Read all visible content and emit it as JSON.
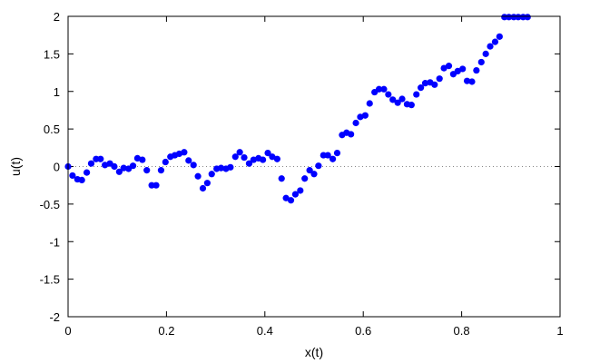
{
  "chart_data": {
    "type": "scatter",
    "title": "",
    "xlabel": "x(t)",
    "ylabel": "u(t)",
    "xlim": [
      0,
      1
    ],
    "ylim": [
      -2,
      2
    ],
    "x_ticks": [
      0,
      0.2,
      0.4,
      0.6,
      0.8,
      1
    ],
    "x_tick_labels": [
      "0",
      "0.2",
      "0.4",
      "0.6",
      "0.8",
      "1"
    ],
    "y_ticks": [
      -2,
      -1.5,
      -1,
      -0.5,
      0,
      0.5,
      1,
      1.5,
      2
    ],
    "y_tick_labels": [
      "-2",
      "-1.5",
      "-1",
      "-0.5",
      "0",
      "0.5",
      "1",
      "1.5",
      "2"
    ],
    "grid": false,
    "reference_line_y": 0,
    "marker_color": "#0000ff",
    "series": [
      {
        "x": [
          0.0,
          0.009,
          0.019,
          0.028,
          0.038,
          0.047,
          0.057,
          0.066,
          0.075,
          0.085,
          0.094,
          0.104,
          0.113,
          0.123,
          0.132,
          0.141,
          0.151,
          0.16,
          0.17,
          0.179,
          0.189,
          0.198,
          0.208,
          0.217,
          0.226,
          0.236,
          0.245,
          0.255,
          0.264,
          0.274,
          0.283,
          0.292,
          0.302,
          0.311,
          0.321,
          0.33,
          0.34,
          0.349,
          0.358,
          0.368,
          0.377,
          0.387,
          0.396,
          0.406,
          0.415,
          0.425,
          0.434,
          0.443,
          0.453,
          0.462,
          0.472,
          0.481,
          0.491,
          0.5,
          0.509,
          0.519,
          0.528,
          0.538,
          0.547,
          0.557,
          0.566,
          0.575,
          0.585,
          0.594,
          0.604,
          0.613,
          0.623,
          0.632,
          0.642,
          0.651,
          0.66,
          0.67,
          0.679,
          0.689,
          0.698,
          0.708,
          0.717,
          0.726,
          0.736,
          0.745,
          0.755,
          0.764,
          0.774,
          0.783,
          0.792,
          0.802,
          0.811,
          0.821,
          0.83,
          0.84,
          0.849,
          0.858,
          0.868,
          0.877,
          0.887,
          0.896,
          0.906,
          0.915,
          0.925,
          0.934
        ],
        "y": [
          0.0,
          -0.12,
          -0.17,
          -0.18,
          -0.08,
          0.04,
          0.1,
          0.1,
          0.02,
          0.04,
          0.0,
          -0.07,
          -0.02,
          -0.03,
          0.01,
          0.11,
          0.09,
          -0.05,
          -0.25,
          -0.25,
          -0.05,
          0.06,
          0.13,
          0.15,
          0.17,
          0.19,
          0.08,
          0.02,
          -0.13,
          -0.29,
          -0.22,
          -0.1,
          -0.03,
          -0.02,
          -0.03,
          -0.01,
          0.13,
          0.19,
          0.12,
          0.04,
          0.09,
          0.11,
          0.09,
          0.18,
          0.13,
          0.1,
          -0.16,
          -0.42,
          -0.45,
          -0.37,
          -0.32,
          -0.16,
          -0.05,
          -0.1,
          0.01,
          0.15,
          0.15,
          0.1,
          0.18,
          0.42,
          0.45,
          0.43,
          0.58,
          0.66,
          0.68,
          0.84,
          0.99,
          1.03,
          1.03,
          0.96,
          0.89,
          0.85,
          0.9,
          0.83,
          0.82,
          0.96,
          1.05,
          1.11,
          1.12,
          1.09,
          1.17,
          1.31,
          1.34,
          1.23,
          1.27,
          1.3,
          1.14,
          1.13,
          1.28,
          1.39,
          1.5,
          1.6,
          1.66,
          1.73,
          1.99,
          1.99,
          1.99,
          1.99,
          1.99,
          1.99
        ]
      }
    ]
  }
}
